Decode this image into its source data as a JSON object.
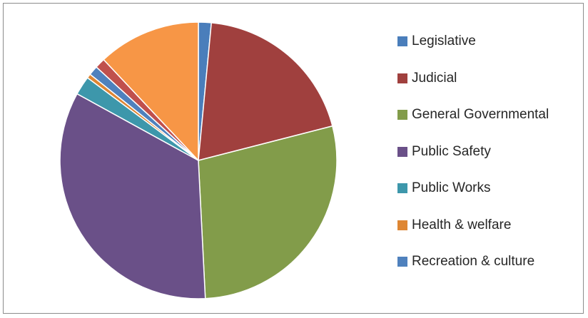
{
  "chart_data": {
    "type": "pie",
    "title": "",
    "categories": [
      "Legislative",
      "Judicial",
      "General Governmental",
      "Public Safety",
      "Public Works",
      "Health & welfare",
      "Recreation & culture"
    ],
    "slices": [
      {
        "label": "Legislative",
        "value": 1.5,
        "color": "#4a7ebb",
        "in_legend": true
      },
      {
        "label": "Judicial",
        "value": 19.5,
        "color": "#a0403e",
        "in_legend": true
      },
      {
        "label": "General Governmental",
        "value": 28.2,
        "color": "#829c4a",
        "in_legend": true
      },
      {
        "label": "Public Safety",
        "value": 33.8,
        "color": "#6a5088",
        "in_legend": true
      },
      {
        "label": "Public Works",
        "value": 2.2,
        "color": "#3d97ab",
        "in_legend": true
      },
      {
        "label": "Health & welfare",
        "value": 0.5,
        "color": "#de8633",
        "in_legend": true
      },
      {
        "label": "Recreation & culture",
        "value": 1.1,
        "color": "#4f81bd",
        "in_legend": true
      },
      {
        "label": "",
        "value": 1.2,
        "color": "#c0504d",
        "in_legend": false
      },
      {
        "label": "",
        "value": 12.0,
        "color": "#f79646",
        "in_legend": false
      }
    ],
    "start_angle": "12 o'clock",
    "direction": "clockwise",
    "legend_position": "right",
    "border_color": "#8c8c8c",
    "slice_outline_color": "#ffffff"
  }
}
